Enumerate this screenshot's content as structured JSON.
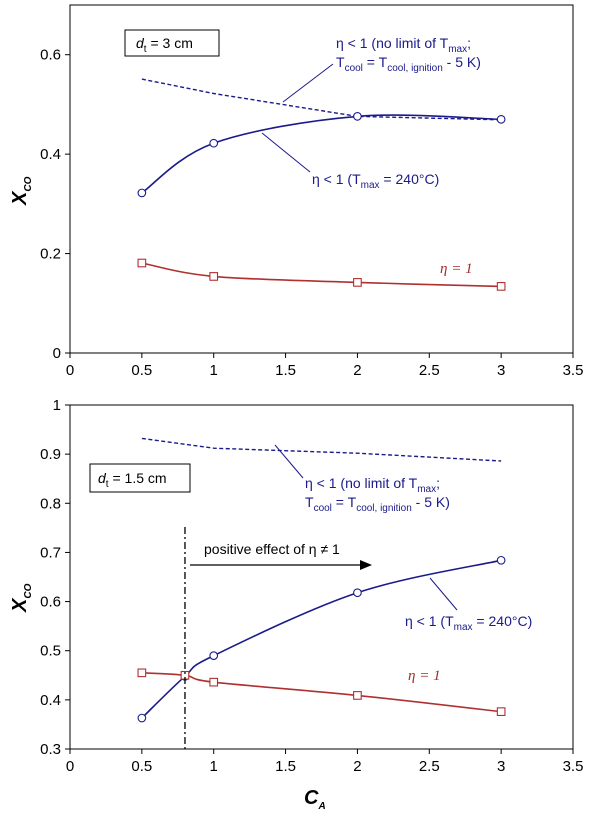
{
  "colors": {
    "blue": "#1a1a8c",
    "red": "#b03030",
    "axis": "#000000"
  },
  "chart_data": [
    {
      "type": "line",
      "xlim": [
        0,
        3.5
      ],
      "ylim": [
        0,
        0.7
      ],
      "xticks": [
        "0",
        "0.5",
        "1",
        "1.5",
        "2",
        "2.5",
        "3",
        "3.5"
      ],
      "yticks": [
        "0",
        "0.2",
        "0.4",
        "0.6"
      ],
      "ylabel": {
        "main": "X",
        "sub": "CO"
      },
      "box_label": {
        "main": "d",
        "sub": "t",
        "rest": " = 3 cm"
      },
      "series": [
        {
          "style": "dashed",
          "x": [
            0.5,
            1,
            2,
            3
          ],
          "y": [
            0.551,
            0.522,
            0.476,
            0.469
          ]
        },
        {
          "style": "circle",
          "x": [
            0.5,
            1,
            2,
            3
          ],
          "y": [
            0.322,
            0.422,
            0.476,
            0.47
          ]
        },
        {
          "style": "square",
          "x": [
            0.5,
            1,
            2,
            3
          ],
          "y": [
            0.181,
            0.154,
            0.142,
            0.134
          ]
        }
      ],
      "annotations": {
        "no_limit": {
          "l1_a": "η < 1 (no limit of T",
          "l1_sub": "max",
          "l1_b": ";",
          "l2_a": "T",
          "l2_s1": "cool",
          "l2_b": " = T",
          "l2_s2": "cool, ignition",
          "l2_c": " - 5 K)"
        },
        "tmax": {
          "a": "η < 1 (T",
          "sub": "max",
          "b": " = 240°C)"
        },
        "eta1": "η = 1"
      }
    },
    {
      "type": "line",
      "xlim": [
        0,
        3.5
      ],
      "ylim": [
        0.3,
        1.0
      ],
      "xticks": [
        "0",
        "0.5",
        "1",
        "1.5",
        "2",
        "2.5",
        "3",
        "3.5"
      ],
      "yticks": [
        "0.3",
        "0.4",
        "0.5",
        "0.6",
        "0.7",
        "0.8",
        "0.9",
        "1"
      ],
      "ylabel": {
        "main": "X",
        "sub": "CO"
      },
      "xlabel": {
        "main": "C",
        "sub": "A"
      },
      "box_label": {
        "main": "d",
        "sub": "t",
        "rest": " = 1.5 cm"
      },
      "series": [
        {
          "style": "dashed",
          "x": [
            0.5,
            1,
            2,
            3
          ],
          "y": [
            0.932,
            0.912,
            0.902,
            0.886
          ]
        },
        {
          "style": "circle",
          "x": [
            0.5,
            0.8,
            1,
            2,
            3
          ],
          "y": [
            0.363,
            0.448,
            0.49,
            0.618,
            0.684
          ]
        },
        {
          "style": "square",
          "x": [
            0.5,
            0.8,
            1,
            2,
            3
          ],
          "y": [
            0.455,
            0.45,
            0.436,
            0.409,
            0.376
          ]
        }
      ],
      "vline_x": 0.8,
      "annotations": {
        "positive": "positive effect of η ≠ 1",
        "no_limit": {
          "l1_a": "η < 1 (no limit of T",
          "l1_sub": "max",
          "l1_b": ";",
          "l2_a": "T",
          "l2_s1": "cool",
          "l2_b": " = T",
          "l2_s2": "cool, ignition",
          "l2_c": " - 5 K)"
        },
        "tmax": {
          "a": "η < 1 (T",
          "sub": "max",
          "b": " = 240°C)"
        },
        "eta1": "η = 1"
      }
    }
  ]
}
